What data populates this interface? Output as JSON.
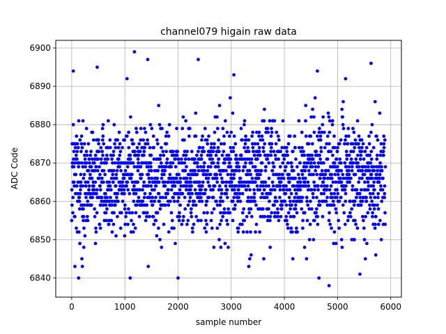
{
  "chart_data": {
    "type": "scatter",
    "title": "channel079 higain raw data",
    "xlabel": "sample number",
    "ylabel": "ADC Code",
    "xlim": [
      -300,
      6200
    ],
    "ylim": [
      6835,
      6902
    ],
    "xticks": [
      0,
      1000,
      2000,
      3000,
      4000,
      5000,
      6000
    ],
    "yticks": [
      6840,
      6850,
      6860,
      6870,
      6880,
      6890,
      6900
    ],
    "grid": true,
    "marker_color": "#0000ff",
    "series": [
      {
        "points_summary": "about 5900 samples (sample number 0 to about 5900), ADC values centered near 6866, mostly between 6850 and 6882, extremes 6838 to 6899",
        "x_range": [
          0,
          5900
        ],
        "y_center": 6866,
        "y_spread": 7,
        "outliers": [
          [
            30,
            6894
          ],
          [
            480,
            6895
          ],
          [
            1180,
            6899
          ],
          [
            1430,
            6897
          ],
          [
            2380,
            6897
          ],
          [
            1040,
            6892
          ],
          [
            3050,
            6893
          ],
          [
            5630,
            6896
          ],
          [
            4620,
            6894
          ],
          [
            5150,
            6892
          ],
          [
            130,
            6840
          ],
          [
            1100,
            6840
          ],
          [
            2000,
            6840
          ],
          [
            4650,
            6840
          ],
          [
            4840,
            6838
          ],
          [
            5420,
            6841
          ],
          [
            60,
            6843
          ],
          [
            200,
            6843
          ],
          [
            1440,
            6843
          ],
          [
            3330,
            6843
          ]
        ]
      }
    ]
  }
}
